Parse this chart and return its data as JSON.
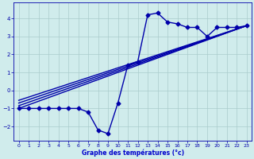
{
  "background_color": "#d0ecec",
  "grid_color": "#aacccc",
  "line_color": "#0000aa",
  "xlabel": "Graphe des températures (°c)",
  "xlabel_color": "#0000cc",
  "ylabel_ticks": [
    -2,
    -1,
    0,
    1,
    2,
    3,
    4
  ],
  "xlim": [
    -0.5,
    23.5
  ],
  "ylim": [
    -2.8,
    4.9
  ],
  "xticks": [
    0,
    1,
    2,
    3,
    4,
    5,
    6,
    7,
    8,
    9,
    10,
    11,
    12,
    13,
    14,
    15,
    16,
    17,
    18,
    19,
    20,
    21,
    22,
    23
  ],
  "data_x": [
    0,
    1,
    2,
    3,
    4,
    5,
    6,
    7,
    8,
    9,
    10,
    11,
    12,
    13,
    14,
    15,
    16,
    17,
    18,
    19,
    20,
    21,
    22,
    23
  ],
  "data_y": [
    -1.0,
    -1.0,
    -1.0,
    -1.0,
    -1.0,
    -1.0,
    -1.0,
    -1.2,
    -2.2,
    -2.4,
    -0.7,
    1.4,
    1.6,
    4.2,
    4.3,
    3.8,
    3.7,
    3.5,
    3.5,
    3.0,
    3.5,
    3.5,
    3.5,
    3.6
  ],
  "straight_lines": [
    {
      "x": [
        0,
        23
      ],
      "y": [
        -1.0,
        3.6
      ]
    },
    {
      "x": [
        0,
        23
      ],
      "y": [
        -0.85,
        3.6
      ]
    },
    {
      "x": [
        0,
        23
      ],
      "y": [
        -0.7,
        3.6
      ]
    },
    {
      "x": [
        0,
        23
      ],
      "y": [
        -0.55,
        3.6
      ]
    }
  ],
  "marker": "D",
  "marker_size": 2.5,
  "linewidth": 1.0,
  "straight_lw": 1.0
}
